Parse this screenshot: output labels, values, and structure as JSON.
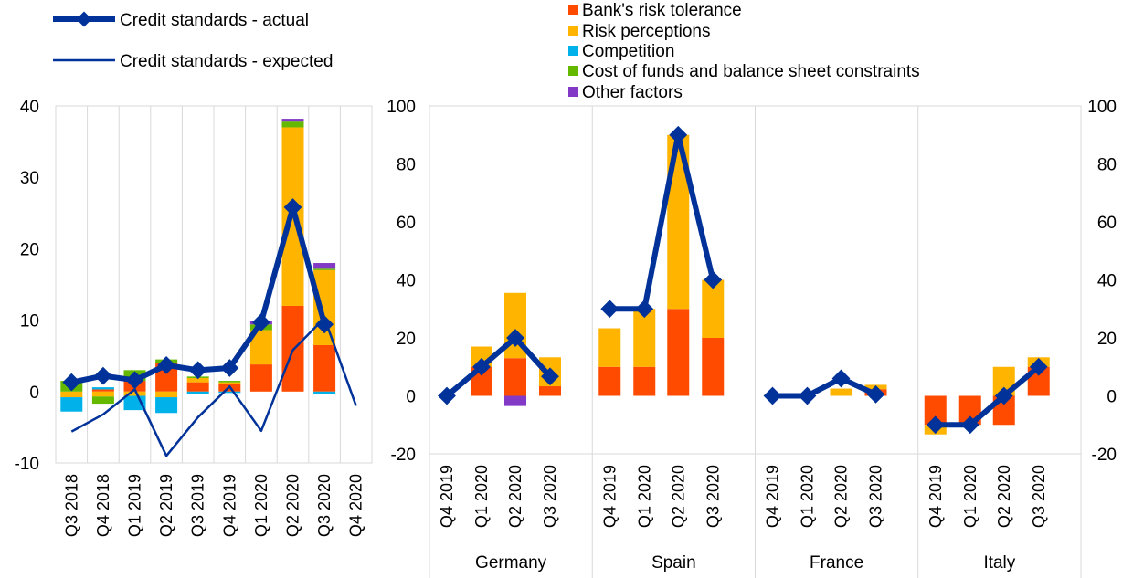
{
  "legend": {
    "actual": "Credit standards - actual",
    "expected": "Credit standards - expected",
    "factors": [
      "Bank's risk tolerance",
      "Risk perceptions",
      "Competition",
      "Cost of funds and balance sheet constraints",
      "Other factors"
    ]
  },
  "colors": {
    "risk_tolerance": "#ff4b00",
    "risk_perceptions": "#ffb400",
    "competition": "#00b1ea",
    "cost_of_funds": "#65b800",
    "other": "#8139c6",
    "line": "#003299",
    "grid": "#d9d9d9"
  },
  "chart_data": [
    {
      "type": "bar",
      "stacked": true,
      "categories": [
        "Q3 2018",
        "Q4 2018",
        "Q1 2019",
        "Q2 2019",
        "Q3 2019",
        "Q4 2019",
        "Q1 2020",
        "Q2 2020",
        "Q3 2020",
        "Q4 2020"
      ],
      "ylim": [
        -10,
        40
      ],
      "yticks": [
        -10,
        0,
        10,
        20,
        30,
        40
      ],
      "series": [
        {
          "name": "Bank's risk tolerance",
          "values": [
            0,
            0.3,
            1.5,
            4,
            1.3,
            1,
            3.8,
            12,
            6.5,
            0
          ]
        },
        {
          "name": "Risk perceptions",
          "values": [
            -0.8,
            -0.7,
            -0.6,
            -0.8,
            0.6,
            0.3,
            4.8,
            25,
            10.5,
            0
          ]
        },
        {
          "name": "Competition",
          "values": [
            -2,
            0.3,
            -2,
            -2.2,
            -0.3,
            -0.2,
            0,
            0,
            -0.4,
            0
          ]
        },
        {
          "name": "Cost of funds and balance sheet constraints",
          "values": [
            1.5,
            -1,
            1.5,
            0.5,
            0.2,
            0.2,
            0.8,
            0.8,
            0.2,
            0
          ]
        },
        {
          "name": "Other factors",
          "values": [
            0,
            0,
            0,
            0,
            0,
            0,
            0.5,
            0.4,
            0.8,
            0
          ]
        }
      ],
      "lines": [
        {
          "name": "Credit standards - actual",
          "values": [
            1.3,
            2.2,
            1.6,
            3.7,
            3.0,
            3.3,
            9.7,
            25.8,
            9.4,
            null
          ]
        },
        {
          "name": "Credit standards - expected",
          "values": [
            -5.6,
            -3.2,
            0.3,
            -9.0,
            -3.6,
            0.7,
            -5.5,
            5.8,
            10.3,
            -2.0
          ]
        }
      ]
    },
    {
      "type": "bar",
      "stacked": true,
      "groups": [
        "Germany",
        "Spain",
        "France",
        "Italy"
      ],
      "categories": [
        "Q4 2019",
        "Q1 2020",
        "Q2 2020",
        "Q3 2020"
      ],
      "ylim": [
        -20,
        100
      ],
      "yticks": [
        -20,
        0,
        20,
        40,
        60,
        80,
        100
      ],
      "series": [
        {
          "name": "Bank's risk tolerance",
          "values": [
            [
              0,
              10,
              13,
              3.3
            ],
            [
              10,
              10,
              30,
              20
            ],
            [
              0,
              0,
              0,
              2.3
            ],
            [
              -10,
              -10,
              -10,
              10
            ]
          ]
        },
        {
          "name": "Risk perceptions",
          "values": [
            [
              0,
              7,
              22.5,
              10
            ],
            [
              13.3,
              20,
              60,
              20
            ],
            [
              0,
              0,
              2.5,
              1.5
            ],
            [
              -3.3,
              0,
              10,
              3.3
            ]
          ]
        },
        {
          "name": "Other factors",
          "values": [
            [
              0,
              0,
              -3.5,
              0
            ],
            [
              0,
              0,
              0,
              0
            ],
            [
              0,
              0,
              0,
              0
            ],
            [
              0,
              0,
              0,
              0
            ]
          ]
        }
      ],
      "lines": [
        {
          "name": "Credit standards - actual",
          "values": [
            [
              0,
              10,
              20,
              6.7
            ],
            [
              30,
              30,
              90,
              40
            ],
            [
              0,
              0,
              6,
              0.5
            ],
            [
              -10,
              -10,
              0,
              10
            ]
          ]
        }
      ]
    }
  ]
}
